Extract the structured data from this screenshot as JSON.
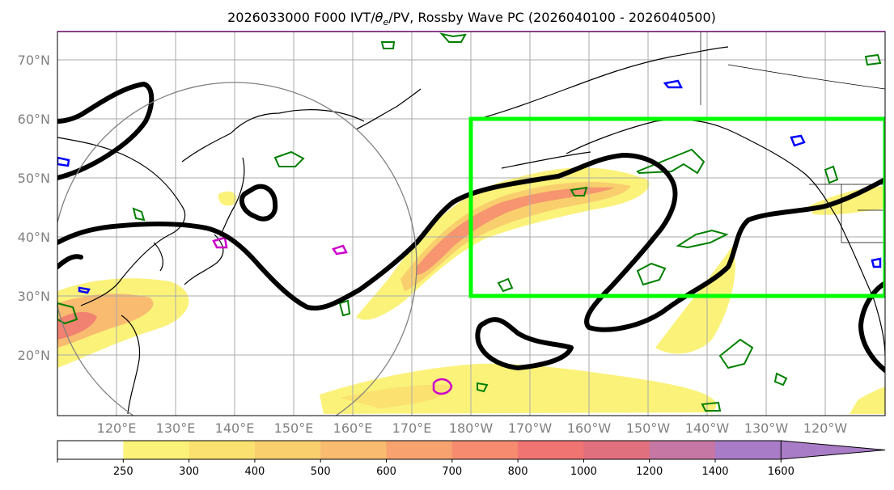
{
  "chart_data": {
    "type": "map",
    "title": "2026033000 F000 IVT/θe/PV, Rossby Wave PC (2026040100 - 2026040500)",
    "title_parts": {
      "pre": "2026033000 F000 IVT/",
      "theta": "θ",
      "sub": "e",
      "post": "/PV, Rossby Wave PC (2026040100 - 2026040500)"
    },
    "lon_range": [
      110,
      250
    ],
    "lat_range": [
      10,
      75
    ],
    "lat_ticks": [
      {
        "value": 20,
        "label": "20°N"
      },
      {
        "value": 30,
        "label": "30°N"
      },
      {
        "value": 40,
        "label": "40°N"
      },
      {
        "value": 50,
        "label": "50°N"
      },
      {
        "value": 60,
        "label": "60°N"
      },
      {
        "value": 70,
        "label": "70°N"
      }
    ],
    "lon_ticks": [
      {
        "value": 120,
        "label": "120°E"
      },
      {
        "value": 130,
        "label": "130°E"
      },
      {
        "value": 140,
        "label": "140°E"
      },
      {
        "value": 150,
        "label": "150°E"
      },
      {
        "value": 160,
        "label": "160°E"
      },
      {
        "value": 170,
        "label": "170°E"
      },
      {
        "value": 180,
        "label": "180°W"
      },
      {
        "value": 190,
        "label": "170°W"
      },
      {
        "value": 200,
        "label": "160°W"
      },
      {
        "value": 210,
        "label": "150°W"
      },
      {
        "value": 220,
        "label": "140°W"
      },
      {
        "value": 230,
        "label": "130°W"
      },
      {
        "value": 240,
        "label": "120°W"
      }
    ],
    "colorbar": {
      "levels": [
        250,
        300,
        400,
        500,
        600,
        700,
        800,
        1000,
        1200,
        1400,
        1600
      ],
      "colors": [
        "#ffffff",
        "#fbf27a",
        "#fbe270",
        "#f9cf6e",
        "#f8bb70",
        "#f8a36f",
        "#f68b70",
        "#ef7472",
        "#e0707e",
        "#c777a3",
        "#a87cc6"
      ],
      "extend": "max"
    },
    "box": {
      "lon": [
        180,
        250
      ],
      "lat": [
        30,
        60
      ],
      "color": "#00ff00"
    },
    "circle": {
      "center_lon": 140,
      "center_lat": 34,
      "radius_deg": 32
    },
    "colors": {
      "rossby_contour": "#000000",
      "theta_e": "#008000",
      "pv_blue": "#0000ff",
      "pv_magenta": "#cc00cc",
      "coast": "#000000",
      "grid": "#a9a9a9"
    }
  }
}
